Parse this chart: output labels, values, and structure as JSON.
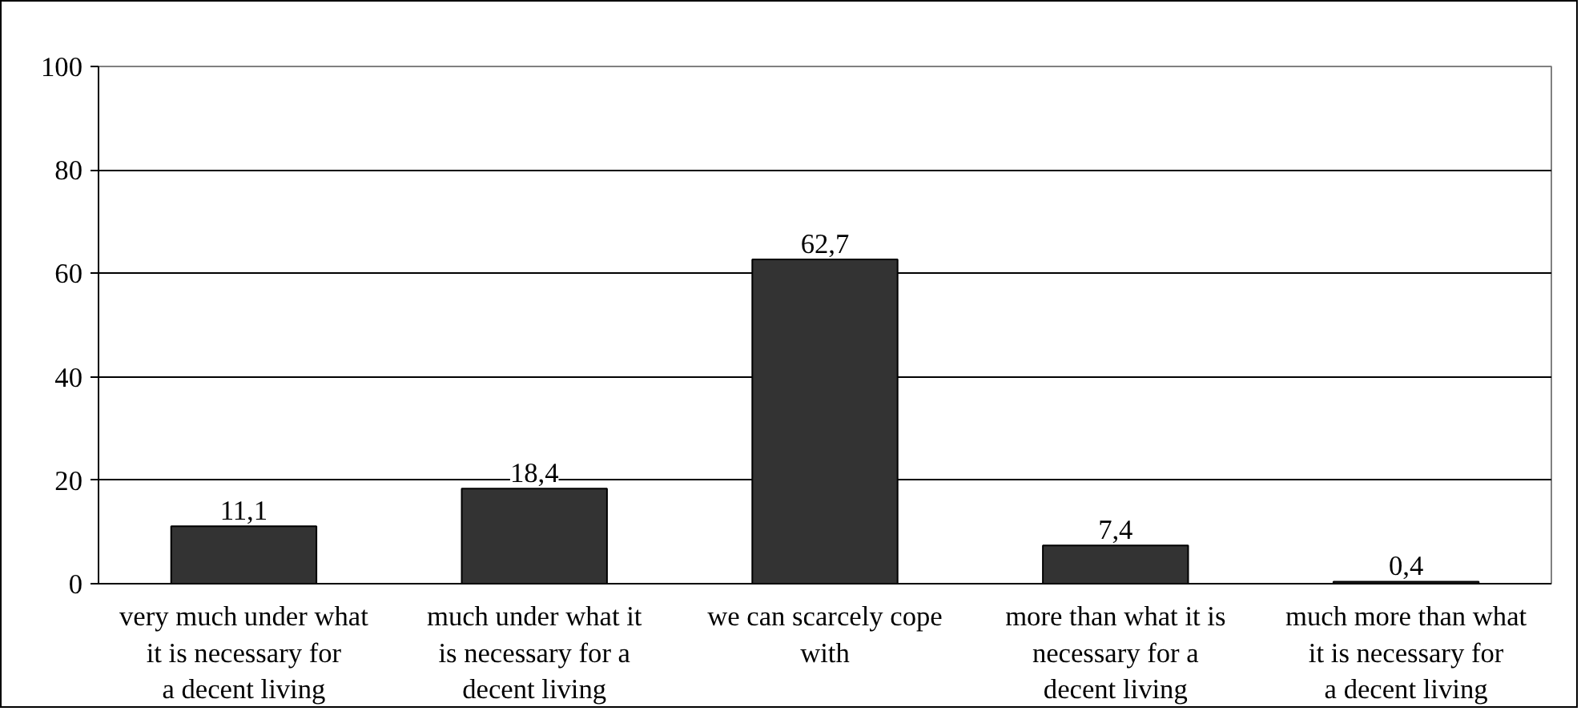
{
  "chart_data": {
    "type": "bar",
    "categories": [
      "very much under what it is necessary for a decent living",
      "much under what it is necessary for a decent living",
      "we can scarcely cope with",
      "more than what it is necessary for a decent living",
      "much more than what it is necessary for a decent living"
    ],
    "values": [
      11.1,
      18.4,
      62.7,
      7.4,
      0.4
    ],
    "value_labels": [
      "11,1",
      "18,4",
      "62,7",
      "7,4",
      "0,4"
    ],
    "color": "#333333",
    "ylim": [
      0,
      100
    ],
    "yticks": [
      0,
      20,
      40,
      60,
      80,
      100
    ],
    "grid": "y"
  }
}
